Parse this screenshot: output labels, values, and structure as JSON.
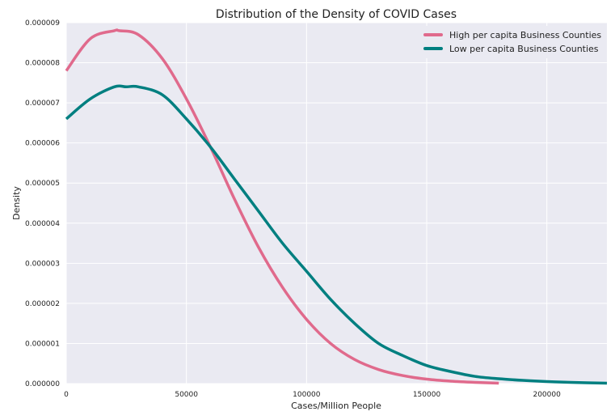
{
  "chart_data": {
    "type": "line",
    "title": "Distribution of the Density of COVID Cases",
    "xlabel": "Cases/Million People",
    "ylabel": "Density",
    "xlim": [
      0,
      225000
    ],
    "ylim": [
      0,
      9e-06
    ],
    "x_ticks": [
      0,
      50000,
      100000,
      150000,
      200000
    ],
    "x_tick_labels": [
      "0",
      "50000",
      "100000",
      "150000",
      "200000"
    ],
    "y_ticks": [
      0,
      1e-06,
      2e-06,
      3e-06,
      4e-06,
      5e-06,
      6e-06,
      7e-06,
      8e-06,
      9e-06
    ],
    "y_tick_labels": [
      "0.000000",
      "0.000001",
      "0.000002",
      "0.000003",
      "0.000004",
      "0.000005",
      "0.000006",
      "0.000007",
      "0.000008",
      "0.000009"
    ],
    "grid": true,
    "legend_position": "top-right",
    "colors": {
      "plot_background": "#EAEAF2",
      "grid": "#FFFFFF"
    },
    "series": [
      {
        "name": "High per capita Business Counties",
        "color": "#E06A8C",
        "x": [
          0,
          10000,
          20000,
          22000,
          30000,
          40000,
          50000,
          60000,
          70000,
          80000,
          90000,
          100000,
          110000,
          120000,
          130000,
          140000,
          150000,
          160000,
          170000,
          180000
        ],
        "y": [
          7.8e-06,
          8.6e-06,
          8.8e-06,
          8.8e-06,
          8.7e-06,
          8.1e-06,
          7.1e-06,
          5.9e-06,
          4.6e-06,
          3.4e-06,
          2.4e-06,
          1.6e-06,
          1e-06,
          6e-07,
          3.5e-07,
          2e-07,
          1.1e-07,
          6e-08,
          3e-08,
          1e-08
        ]
      },
      {
        "name": "Low per capita Business Counties",
        "color": "#007F80",
        "x": [
          0,
          10000,
          20000,
          25000,
          30000,
          40000,
          50000,
          60000,
          70000,
          80000,
          90000,
          100000,
          110000,
          120000,
          130000,
          140000,
          150000,
          160000,
          170000,
          180000,
          190000,
          200000,
          210000,
          225000
        ],
        "y": [
          6.6e-06,
          7.1e-06,
          7.4e-06,
          7.4e-06,
          7.4e-06,
          7.2e-06,
          6.6e-06,
          5.9e-06,
          5.1e-06,
          4.3e-06,
          3.5e-06,
          2.8e-06,
          2.1e-06,
          1.5e-06,
          1e-06,
          7e-07,
          4.5e-07,
          3e-07,
          1.8e-07,
          1.2e-07,
          8e-08,
          5e-08,
          3e-08,
          1e-08
        ]
      }
    ]
  }
}
